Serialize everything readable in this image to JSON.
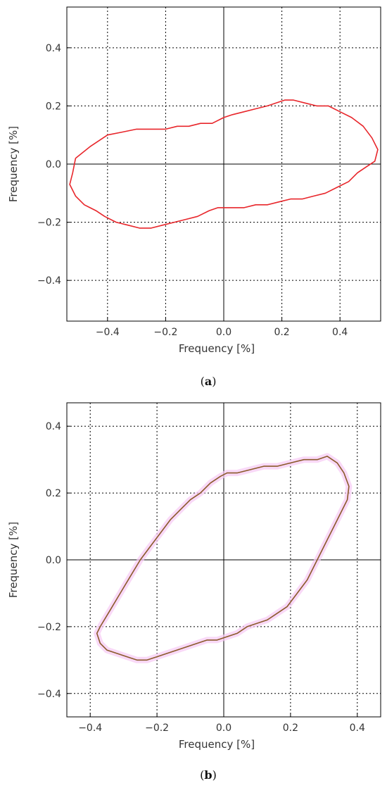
{
  "chart_data": [
    {
      "type": "line",
      "panel": "a",
      "caption_label": "a",
      "xlabel": "Frequency [%]",
      "ylabel": "Frequency [%]",
      "xlim": [
        -0.54,
        0.54
      ],
      "ylim": [
        -0.54,
        0.54
      ],
      "xticks": [
        -0.4,
        -0.2,
        0.0,
        0.2,
        0.4
      ],
      "yticks": [
        -0.4,
        -0.2,
        0.0,
        0.2,
        0.4
      ],
      "xtick_labels": [
        "−0.4",
        "−0.2",
        "0.0",
        "0.2",
        "0.4"
      ],
      "ytick_labels": [
        "−0.4",
        "−0.2",
        "0.0",
        "0.2",
        "0.4"
      ],
      "grid": true,
      "line_color": "#e8262b",
      "series": [
        {
          "x": [
            -0.51,
            -0.46,
            -0.4,
            -0.35,
            -0.3,
            -0.25,
            -0.2,
            -0.16,
            -0.12,
            -0.08,
            -0.04,
            0.0,
            0.03,
            0.07,
            0.11,
            0.15,
            0.18,
            0.21,
            0.24,
            0.28,
            0.32,
            0.36,
            0.4,
            0.44,
            0.48,
            0.51,
            0.53,
            0.52,
            0.49,
            0.46,
            0.43,
            0.39,
            0.35,
            0.31,
            0.27,
            0.23,
            0.19,
            0.15,
            0.11,
            0.07,
            0.04,
            0.01,
            -0.02,
            -0.05,
            -0.09,
            -0.13,
            -0.17,
            -0.21,
            -0.25,
            -0.29,
            -0.33,
            -0.37,
            -0.41,
            -0.44,
            -0.48,
            -0.51,
            -0.53,
            -0.52,
            -0.51
          ],
          "y": [
            0.02,
            0.06,
            0.1,
            0.11,
            0.12,
            0.12,
            0.12,
            0.13,
            0.13,
            0.14,
            0.14,
            0.16,
            0.17,
            0.18,
            0.19,
            0.2,
            0.21,
            0.22,
            0.22,
            0.21,
            0.2,
            0.2,
            0.18,
            0.16,
            0.13,
            0.09,
            0.05,
            0.01,
            -0.01,
            -0.03,
            -0.06,
            -0.08,
            -0.1,
            -0.11,
            -0.12,
            -0.12,
            -0.13,
            -0.14,
            -0.14,
            -0.15,
            -0.15,
            -0.15,
            -0.15,
            -0.16,
            -0.18,
            -0.19,
            -0.2,
            -0.21,
            -0.22,
            -0.22,
            -0.21,
            -0.2,
            -0.18,
            -0.16,
            -0.14,
            -0.11,
            -0.07,
            -0.03,
            0.02
          ]
        }
      ]
    },
    {
      "type": "line",
      "panel": "b",
      "caption_label": "b",
      "xlabel": "Frequency [%]",
      "ylabel": "Frequency [%]",
      "xlim": [
        -0.47,
        0.47
      ],
      "ylim": [
        -0.47,
        0.47
      ],
      "xticks": [
        -0.4,
        -0.2,
        0.0,
        0.2,
        0.4
      ],
      "yticks": [
        -0.4,
        -0.2,
        0.0,
        0.2,
        0.4
      ],
      "xtick_labels": [
        "−0.4",
        "−0.2",
        "0.0",
        "0.2",
        "0.4"
      ],
      "ytick_labels": [
        "−0.4",
        "−0.2",
        "0.0",
        "0.2",
        "0.4"
      ],
      "grid": true,
      "line_color": "#8b5a2b",
      "halo_color": "#f6c9f4",
      "series": [
        {
          "x": [
            -0.37,
            -0.34,
            -0.31,
            -0.28,
            -0.25,
            -0.22,
            -0.19,
            -0.16,
            -0.13,
            -0.1,
            -0.07,
            -0.04,
            -0.01,
            0.01,
            0.04,
            0.08,
            0.12,
            0.16,
            0.2,
            0.24,
            0.28,
            0.31,
            0.34,
            0.36,
            0.375,
            0.37,
            0.35,
            0.33,
            0.31,
            0.29,
            0.27,
            0.25,
            0.22,
            0.19,
            0.16,
            0.13,
            0.1,
            0.07,
            0.04,
            0.01,
            -0.02,
            -0.05,
            -0.08,
            -0.11,
            -0.14,
            -0.17,
            -0.2,
            -0.23,
            -0.26,
            -0.29,
            -0.32,
            -0.35,
            -0.37,
            -0.38,
            -0.37
          ],
          "y": [
            -0.2,
            -0.15,
            -0.1,
            -0.05,
            0.0,
            0.04,
            0.08,
            0.12,
            0.15,
            0.18,
            0.2,
            0.23,
            0.25,
            0.26,
            0.26,
            0.27,
            0.28,
            0.28,
            0.29,
            0.3,
            0.3,
            0.31,
            0.29,
            0.26,
            0.22,
            0.18,
            0.14,
            0.1,
            0.06,
            0.02,
            -0.02,
            -0.06,
            -0.1,
            -0.14,
            -0.16,
            -0.18,
            -0.19,
            -0.2,
            -0.22,
            -0.23,
            -0.24,
            -0.24,
            -0.25,
            -0.26,
            -0.27,
            -0.28,
            -0.29,
            -0.3,
            -0.3,
            -0.29,
            -0.28,
            -0.27,
            -0.25,
            -0.22,
            -0.2
          ]
        }
      ]
    }
  ]
}
